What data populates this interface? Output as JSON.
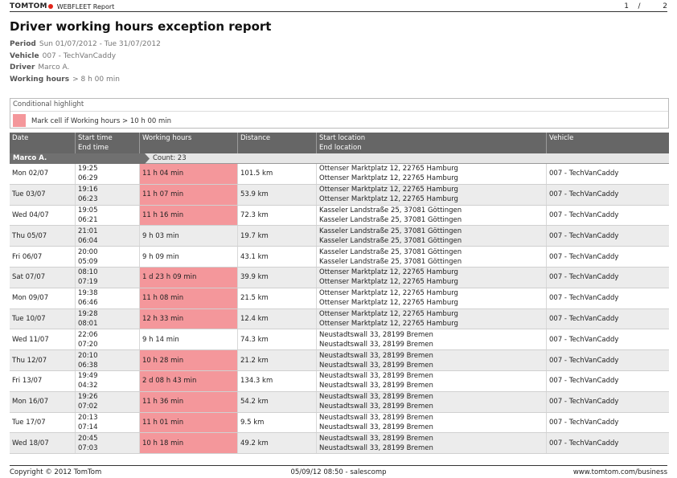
{
  "header": {
    "brand": "TOMTOM",
    "product": "WEBFLEET Report",
    "page_current": "1",
    "page_sep": "/",
    "page_total": "2"
  },
  "title": "Driver working hours exception report",
  "meta": [
    {
      "key": "Period",
      "value": "Sun 01/07/2012 - Tue 31/07/2012"
    },
    {
      "key": "Vehicle",
      "value": "007 - TechVanCaddy"
    },
    {
      "key": "Driver",
      "value": "Marco A."
    },
    {
      "key": "Working hours",
      "value": "> 8 h 00 min"
    }
  ],
  "highlight": {
    "title": "Conditional highlight",
    "color": "#f4979b",
    "text": "Mark cell if Working hours > 10 h 00 min"
  },
  "columns": [
    {
      "line1": "Date",
      "line2": ""
    },
    {
      "line1": "Start time",
      "line2": "End time"
    },
    {
      "line1": "Working hours",
      "line2": ""
    },
    {
      "line1": "Distance",
      "line2": ""
    },
    {
      "line1": "Start location",
      "line2": "End location"
    },
    {
      "line1": "Vehicle",
      "line2": ""
    }
  ],
  "group": {
    "name": "Marco A.",
    "count": "Count: 23"
  },
  "rows": [
    {
      "date": "Mon 02/07",
      "start": "19:25",
      "end": "06:29",
      "hours": "11 h 04 min",
      "hot": true,
      "distance": "101.5 km",
      "start_loc": "Ottenser Marktplatz 12, 22765 Hamburg",
      "end_loc": "Ottenser Marktplatz 12, 22765 Hamburg",
      "vehicle": "007 - TechVanCaddy"
    },
    {
      "date": "Tue 03/07",
      "start": "19:16",
      "end": "06:23",
      "hours": "11 h 07 min",
      "hot": true,
      "distance": "53.9 km",
      "start_loc": "Ottenser Marktplatz 12, 22765 Hamburg",
      "end_loc": "Ottenser Marktplatz 12, 22765 Hamburg",
      "vehicle": "007 - TechVanCaddy"
    },
    {
      "date": "Wed 04/07",
      "start": "19:05",
      "end": "06:21",
      "hours": "11 h 16 min",
      "hot": true,
      "distance": "72.3 km",
      "start_loc": "Kasseler Landstraße 25, 37081 Göttingen",
      "end_loc": "Kasseler Landstraße 25, 37081 Göttingen",
      "vehicle": "007 - TechVanCaddy"
    },
    {
      "date": "Thu 05/07",
      "start": "21:01",
      "end": "06:04",
      "hours": "9 h 03 min",
      "hot": false,
      "distance": "19.7 km",
      "start_loc": "Kasseler Landstraße 25, 37081 Göttingen",
      "end_loc": "Kasseler Landstraße 25, 37081 Göttingen",
      "vehicle": "007 - TechVanCaddy"
    },
    {
      "date": "Fri 06/07",
      "start": "20:00",
      "end": "05:09",
      "hours": "9 h 09 min",
      "hot": false,
      "distance": "43.1 km",
      "start_loc": "Kasseler Landstraße 25, 37081 Göttingen",
      "end_loc": "Kasseler Landstraße 25, 37081 Göttingen",
      "vehicle": "007 - TechVanCaddy"
    },
    {
      "date": "Sat 07/07",
      "start": "08:10",
      "end": "07:19",
      "hours": "1 d 23 h 09 min",
      "hot": true,
      "distance": "39.9 km",
      "start_loc": "Ottenser Marktplatz 12, 22765 Hamburg",
      "end_loc": "Ottenser Marktplatz 12, 22765 Hamburg",
      "vehicle": "007 - TechVanCaddy"
    },
    {
      "date": "Mon 09/07",
      "start": "19:38",
      "end": "06:46",
      "hours": "11 h 08 min",
      "hot": true,
      "distance": "21.5 km",
      "start_loc": "Ottenser Marktplatz 12, 22765 Hamburg",
      "end_loc": "Ottenser Marktplatz 12, 22765 Hamburg",
      "vehicle": "007 - TechVanCaddy"
    },
    {
      "date": "Tue 10/07",
      "start": "19:28",
      "end": "08:01",
      "hours": "12 h 33 min",
      "hot": true,
      "distance": "12.4 km",
      "start_loc": "Ottenser Marktplatz 12, 22765 Hamburg",
      "end_loc": "Ottenser Marktplatz 12, 22765 Hamburg",
      "vehicle": "007 - TechVanCaddy"
    },
    {
      "date": "Wed 11/07",
      "start": "22:06",
      "end": "07:20",
      "hours": "9 h 14 min",
      "hot": false,
      "distance": "74.3 km",
      "start_loc": "Neustadtswall 33, 28199 Bremen",
      "end_loc": "Neustadtswall 33, 28199 Bremen",
      "vehicle": "007 - TechVanCaddy"
    },
    {
      "date": "Thu 12/07",
      "start": "20:10",
      "end": "06:38",
      "hours": "10 h 28 min",
      "hot": true,
      "distance": "21.2 km",
      "start_loc": "Neustadtswall 33, 28199 Bremen",
      "end_loc": "Neustadtswall 33, 28199 Bremen",
      "vehicle": "007 - TechVanCaddy"
    },
    {
      "date": "Fri 13/07",
      "start": "19:49",
      "end": "04:32",
      "hours": "2 d 08 h 43 min",
      "hot": true,
      "distance": "134.3 km",
      "start_loc": "Neustadtswall 33, 28199 Bremen",
      "end_loc": "Neustadtswall 33, 28199 Bremen",
      "vehicle": "007 - TechVanCaddy"
    },
    {
      "date": "Mon 16/07",
      "start": "19:26",
      "end": "07:02",
      "hours": "11 h 36 min",
      "hot": true,
      "distance": "54.2 km",
      "start_loc": "Neustadtswall 33, 28199 Bremen",
      "end_loc": "Neustadtswall 33, 28199 Bremen",
      "vehicle": "007 - TechVanCaddy"
    },
    {
      "date": "Tue 17/07",
      "start": "20:13",
      "end": "07:14",
      "hours": "11 h 01 min",
      "hot": true,
      "distance": "9.5 km",
      "start_loc": "Neustadtswall 33, 28199 Bremen",
      "end_loc": "Neustadtswall 33, 28199 Bremen",
      "vehicle": "007 - TechVanCaddy"
    },
    {
      "date": "Wed 18/07",
      "start": "20:45",
      "end": "07:03",
      "hours": "10 h 18 min",
      "hot": true,
      "distance": "49.2 km",
      "start_loc": "Neustadtswall 33, 28199 Bremen",
      "end_loc": "Neustadtswall 33, 28199 Bremen",
      "vehicle": "007 - TechVanCaddy"
    }
  ],
  "footer": {
    "copyright": "Copyright © 2012 TomTom",
    "generated": "05/09/12 08:50 - salescomp",
    "url": "www.tomtom.com/business"
  }
}
